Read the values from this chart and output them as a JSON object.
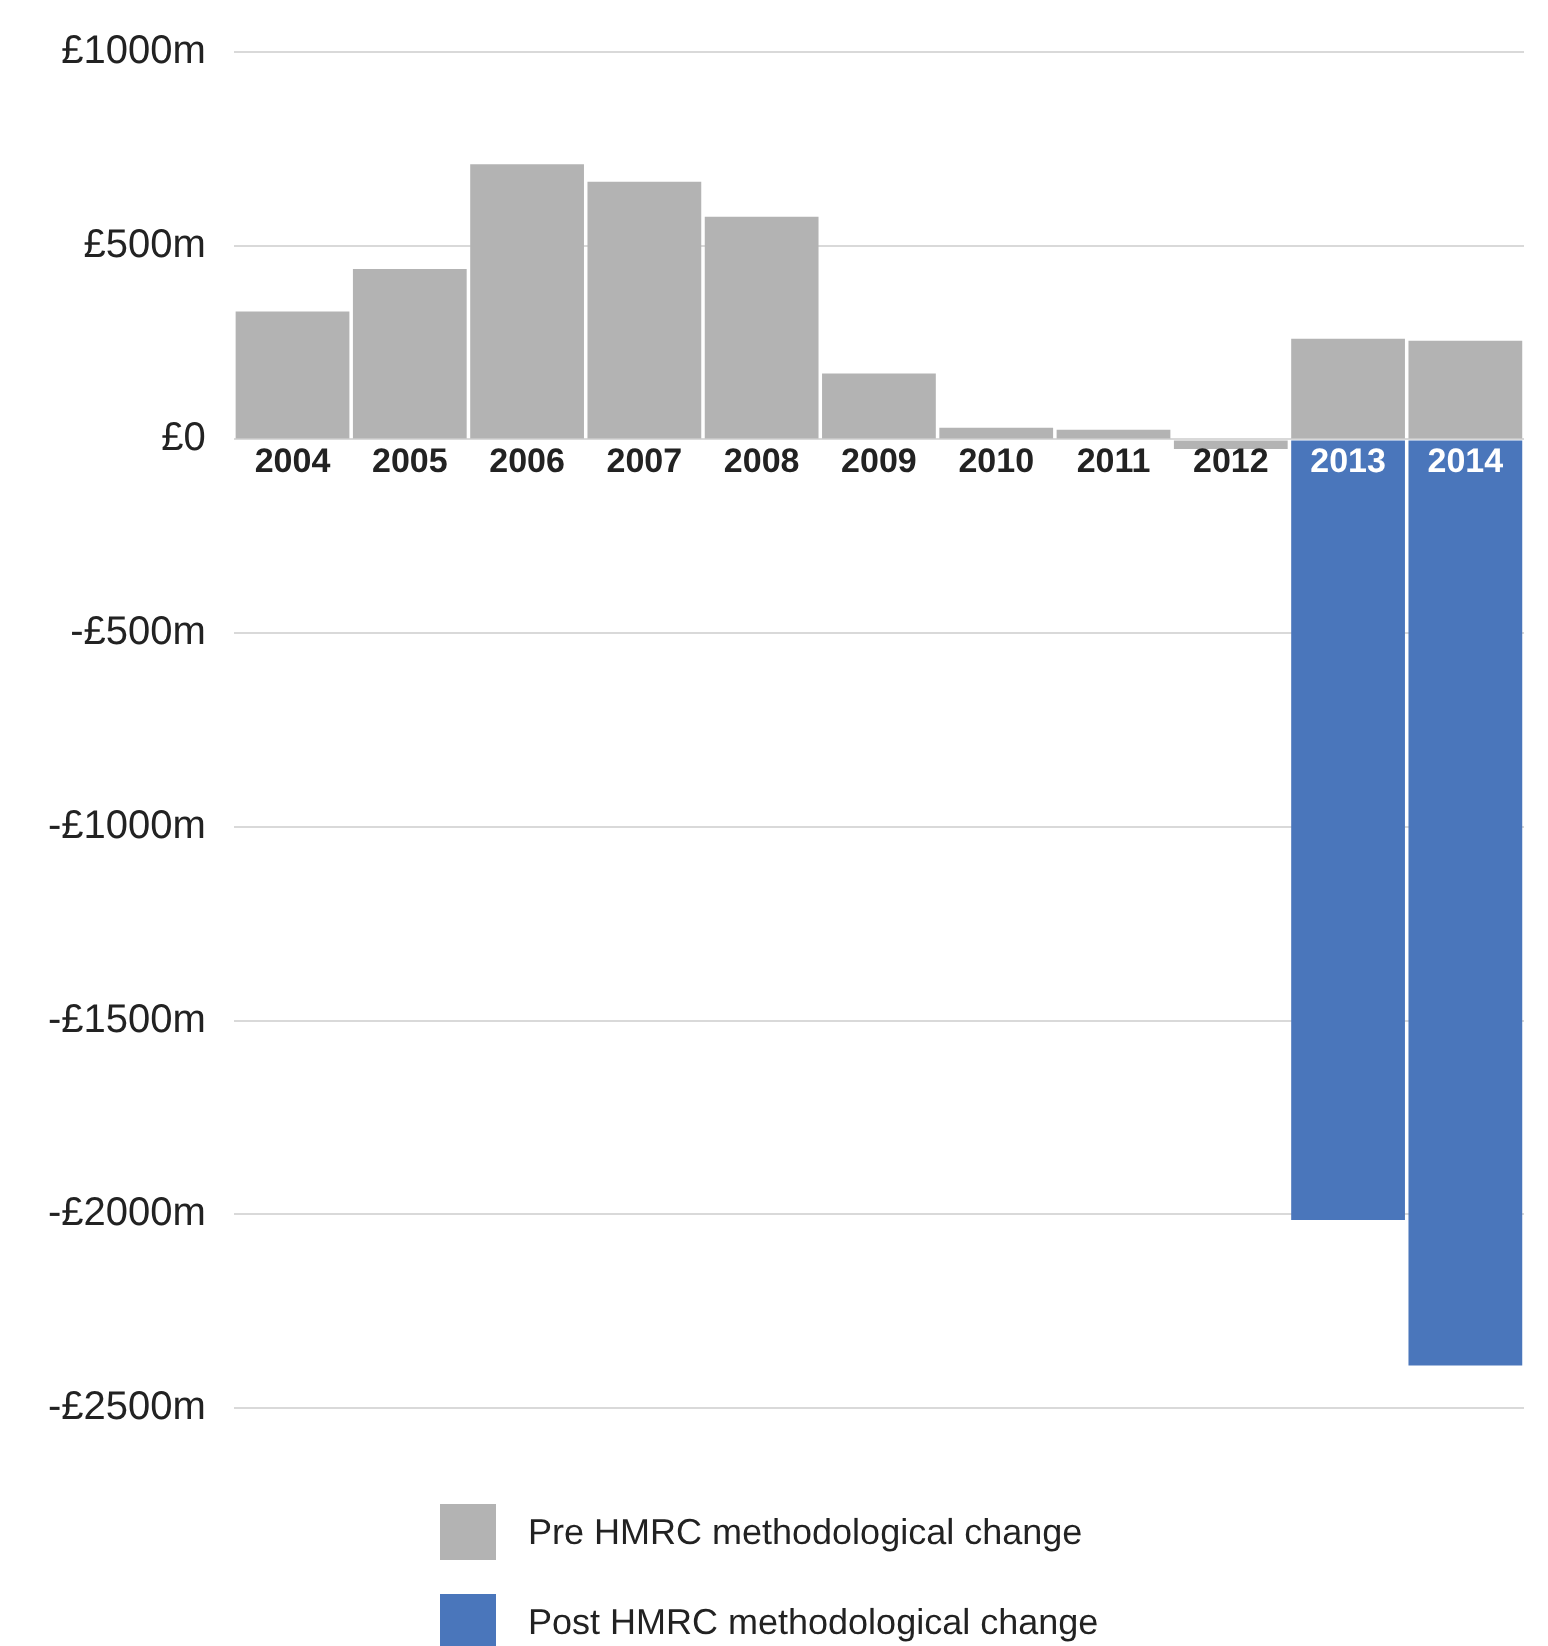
{
  "chart_data": {
    "type": "bar",
    "stacked": true,
    "categories": [
      "2004",
      "2005",
      "2006",
      "2007",
      "2008",
      "2009",
      "2010",
      "2011",
      "2012",
      "2013",
      "2014"
    ],
    "series": [
      {
        "name": "Pre HMRC methodological change",
        "color": "#b3b3b3",
        "values": [
          330,
          440,
          710,
          665,
          575,
          170,
          30,
          25,
          -25,
          260,
          255
        ]
      },
      {
        "name": "Post HMRC methodological change",
        "color": "#4a76bb",
        "values": [
          null,
          null,
          null,
          null,
          null,
          null,
          null,
          null,
          null,
          -2015,
          -2390
        ]
      }
    ],
    "ylim": [
      -2500,
      1000
    ],
    "yticks": [
      {
        "value": 1000,
        "label": "£1000m"
      },
      {
        "value": 500,
        "label": "£500m"
      },
      {
        "value": 0,
        "label": "£0"
      },
      {
        "value": -500,
        "label": "-£500m"
      },
      {
        "value": -1000,
        "label": "-£1000m"
      },
      {
        "value": -1500,
        "label": "-£1500m"
      },
      {
        "value": -2000,
        "label": "-£2000m"
      },
      {
        "value": -2500,
        "label": "-£2500m"
      }
    ],
    "grid": "y",
    "legend": "bottom"
  }
}
